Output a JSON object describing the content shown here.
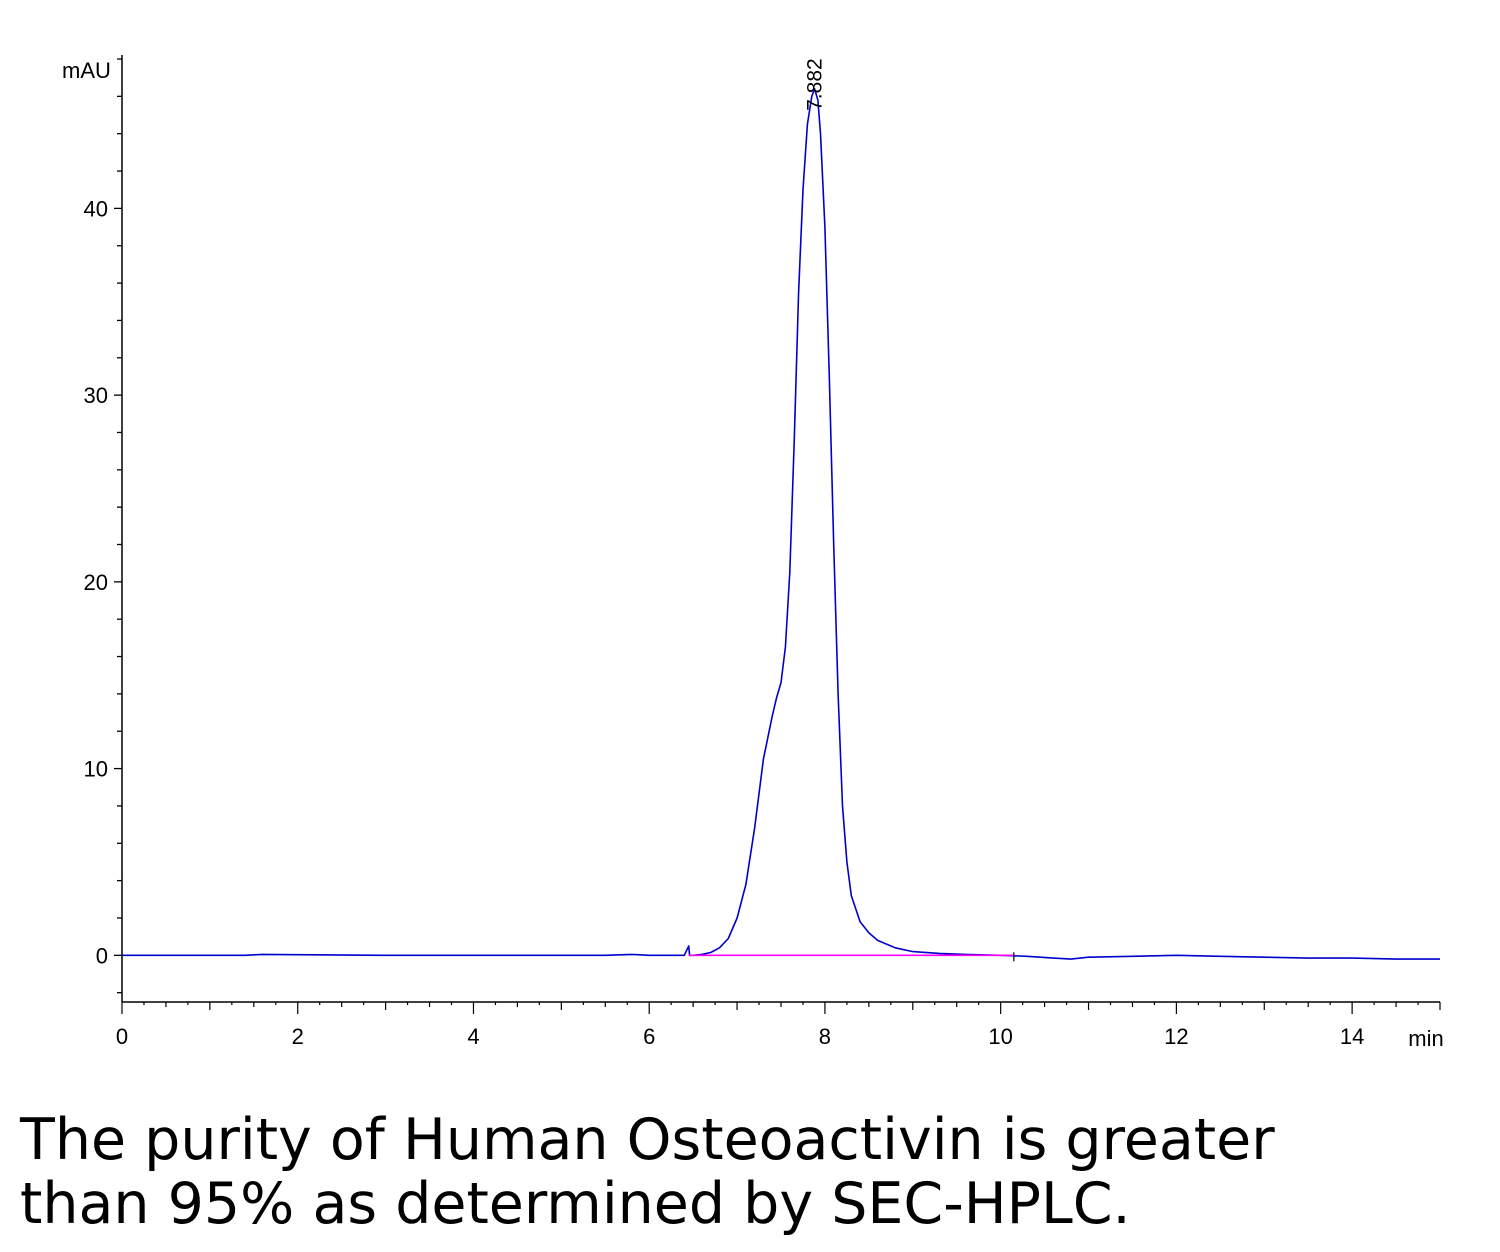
{
  "chart_data": {
    "type": "line",
    "xlabel": "min",
    "ylabel": "mAU",
    "xlim": [
      0,
      15
    ],
    "ylim": [
      -2.5,
      48
    ],
    "xticks": [
      0,
      2,
      4,
      6,
      8,
      10,
      12,
      14
    ],
    "xtick_labels": [
      "0",
      "2",
      "4",
      "6",
      "8",
      "10",
      "12",
      "14"
    ],
    "yticks": [
      0,
      10,
      20,
      30,
      40
    ],
    "ytick_labels": [
      "0",
      "10",
      "20",
      "30",
      "40"
    ],
    "grid": false,
    "series": [
      {
        "color": "#0000cc",
        "x": [
          0,
          1.4,
          1.6,
          3,
          5.5,
          5.8,
          6.0,
          6.4,
          6.45,
          6.46,
          6.5,
          6.6,
          6.7,
          6.8,
          6.9,
          7.0,
          7.1,
          7.2,
          7.3,
          7.4,
          7.45,
          7.5,
          7.55,
          7.6,
          7.65,
          7.7,
          7.75,
          7.8,
          7.85,
          7.882,
          7.92,
          7.95,
          8.0,
          8.05,
          8.1,
          8.15,
          8.2,
          8.25,
          8.3,
          8.4,
          8.5,
          8.6,
          8.8,
          9.0,
          9.3,
          9.6,
          10.0,
          10.3,
          10.6,
          10.8,
          11.0,
          11.5,
          12.0,
          12.5,
          13.0,
          13.5,
          14.0,
          14.5,
          15.0
        ],
        "y": [
          0,
          0,
          0.05,
          0,
          0,
          0.05,
          0,
          0,
          0.5,
          0,
          0,
          0.05,
          0.15,
          0.4,
          0.9,
          2.0,
          3.8,
          6.8,
          10.5,
          12.8,
          13.8,
          14.6,
          16.5,
          20.5,
          27.5,
          35.5,
          41.0,
          44.5,
          46.0,
          46.4,
          45.8,
          44.0,
          39.0,
          31.0,
          22.0,
          14.0,
          8.0,
          5.0,
          3.2,
          1.8,
          1.2,
          0.8,
          0.4,
          0.2,
          0.1,
          0.05,
          0.0,
          -0.05,
          -0.15,
          -0.2,
          -0.1,
          -0.05,
          0.0,
          -0.05,
          -0.1,
          -0.15,
          -0.15,
          -0.2,
          -0.2
        ]
      },
      {
        "color": "#ff00ff",
        "x": [
          6.45,
          10.15
        ],
        "y": [
          0,
          0
        ]
      }
    ],
    "annotations": [
      {
        "text": "7.882",
        "x": 7.882,
        "y": 46.4
      }
    ]
  },
  "caption": {
    "line1": "The purity of Human Osteoactivin is greater",
    "line2": "than 95% as determined by SEC-HPLC."
  }
}
